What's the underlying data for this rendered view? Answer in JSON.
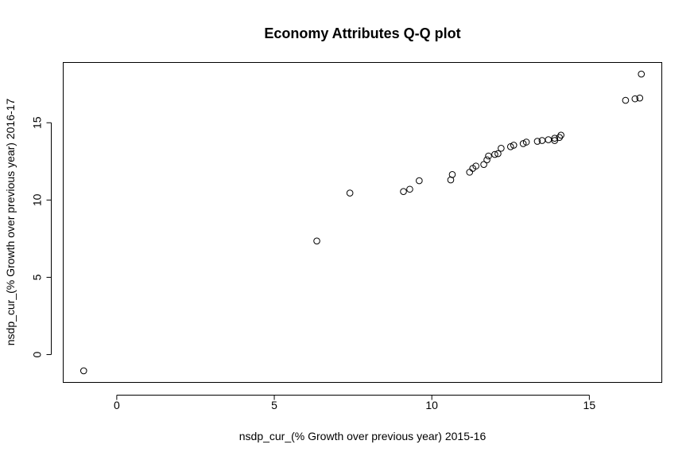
{
  "chart_data": {
    "type": "scatter",
    "title": "Economy Attributes Q-Q plot",
    "xlabel": "nsdp_cur_(% Growth over previous year) 2015-16",
    "ylabel": "nsdp_cur_(% Growth over previous year) 2016-17",
    "xlim": [
      -1.7,
      17.3
    ],
    "ylim": [
      -1.8,
      18.9
    ],
    "x_ticks": [
      0,
      5,
      10,
      15
    ],
    "y_ticks": [
      0,
      5,
      10,
      15
    ],
    "grid": false,
    "legend": "none",
    "points": [
      {
        "x": -1.05,
        "y": -1.05
      },
      {
        "x": 6.35,
        "y": 7.35
      },
      {
        "x": 7.4,
        "y": 10.45
      },
      {
        "x": 9.1,
        "y": 10.55
      },
      {
        "x": 9.3,
        "y": 10.7
      },
      {
        "x": 9.6,
        "y": 11.25
      },
      {
        "x": 10.6,
        "y": 11.3
      },
      {
        "x": 10.65,
        "y": 11.65
      },
      {
        "x": 11.2,
        "y": 11.8
      },
      {
        "x": 11.3,
        "y": 12.05
      },
      {
        "x": 11.4,
        "y": 12.2
      },
      {
        "x": 11.65,
        "y": 12.3
      },
      {
        "x": 11.75,
        "y": 12.6
      },
      {
        "x": 11.8,
        "y": 12.85
      },
      {
        "x": 12.0,
        "y": 12.95
      },
      {
        "x": 12.1,
        "y": 13.0
      },
      {
        "x": 12.2,
        "y": 13.35
      },
      {
        "x": 12.5,
        "y": 13.45
      },
      {
        "x": 12.6,
        "y": 13.55
      },
      {
        "x": 12.9,
        "y": 13.65
      },
      {
        "x": 13.0,
        "y": 13.75
      },
      {
        "x": 13.35,
        "y": 13.8
      },
      {
        "x": 13.5,
        "y": 13.85
      },
      {
        "x": 13.7,
        "y": 13.9
      },
      {
        "x": 13.9,
        "y": 13.85
      },
      {
        "x": 13.9,
        "y": 14.0
      },
      {
        "x": 14.05,
        "y": 14.05
      },
      {
        "x": 14.1,
        "y": 14.2
      },
      {
        "x": 16.15,
        "y": 16.45
      },
      {
        "x": 16.45,
        "y": 16.55
      },
      {
        "x": 16.6,
        "y": 16.6
      },
      {
        "x": 16.65,
        "y": 18.15
      }
    ]
  }
}
